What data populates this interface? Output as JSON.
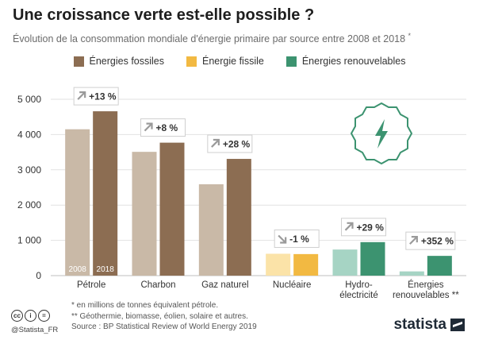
{
  "header": {
    "title": "Une croissance verte est-elle possible ?",
    "subtitle": "Évolution de la consommation mondiale d'énergie primaire par source entre 2008 et 2018",
    "subtitle_mark": "*"
  },
  "legend": {
    "items": [
      {
        "label": "Énergies fossiles",
        "color": "#8c6d52"
      },
      {
        "label": "Énergie fissile",
        "color": "#f2b942"
      },
      {
        "label": "Énergies renouvelables",
        "color": "#3c9370"
      }
    ]
  },
  "chart_data": {
    "type": "bar",
    "categories": [
      "Pétrole",
      "Charbon",
      "Gaz naturel",
      "Nucléaire",
      "Hydro-\nélectricité",
      "Énergies\nrenouvelables **"
    ],
    "series": [
      {
        "name": "2008",
        "values": [
          4150,
          3510,
          2590,
          620,
          740,
          120
        ]
      },
      {
        "name": "2018",
        "values": [
          4660,
          3770,
          3310,
          611,
          950,
          560
        ]
      }
    ],
    "changes": [
      "+13 %",
      "+8 %",
      "+28 %",
      "-1 %",
      "+29 %",
      "+352 %"
    ],
    "change_directions": [
      "up",
      "up",
      "up",
      "down",
      "up",
      "up"
    ],
    "group": [
      "fossil",
      "fossil",
      "fossil",
      "fissile",
      "renewable",
      "renewable"
    ],
    "bar_year_labels": [
      "2008",
      "2018"
    ],
    "ylim": [
      0,
      5000
    ],
    "yticks": [
      0,
      1000,
      2000,
      3000,
      4000,
      5000
    ],
    "ytick_labels": [
      "0",
      "1 000",
      "2 000",
      "3 000",
      "4 000",
      "5 000"
    ],
    "colors": {
      "fossil": [
        "#c9b9a7",
        "#8c6d52"
      ],
      "fissile": [
        "#fbe3a8",
        "#f2b942"
      ],
      "renewable": [
        "#a6d4c4",
        "#3c9370"
      ]
    },
    "grid": true
  },
  "footer": {
    "note1": "* en millions de tonnes équivalent pétrole.",
    "note2": "** Géothermie, biomasse, éolien, solaire et autres.",
    "source": "Source : BP Statistical Review of World Energy 2019",
    "handle": "@Statista_FR",
    "brand": "statista",
    "cc_icons": [
      "cc",
      "i",
      "="
    ]
  }
}
